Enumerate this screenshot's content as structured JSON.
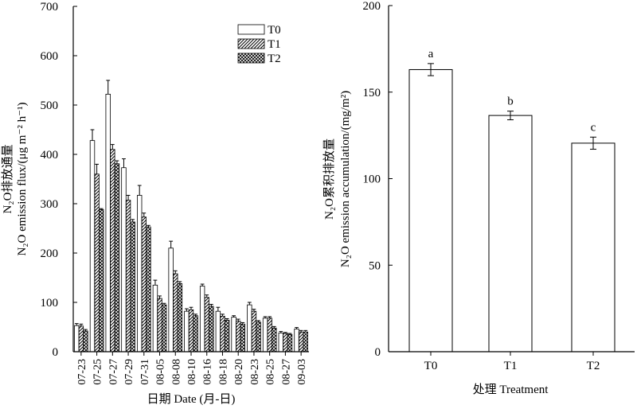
{
  "chart_data": [
    {
      "type": "bar",
      "ylabel_cn": "N₂O排放通量",
      "ylabel_en": "N₂O emission flux/(μg m⁻² h⁻¹)",
      "xlabel": "日期 Date (月-日)",
      "ylim": [
        0,
        700
      ],
      "yticks": [
        "0",
        "100",
        "200",
        "300",
        "400",
        "500",
        "600",
        "700"
      ],
      "categories": [
        "07-23",
        "07-25",
        "07-27",
        "07-29",
        "07-31",
        "08-05",
        "08-08",
        "08-10",
        "08-16",
        "08-18",
        "08-20",
        "08-23",
        "08-25",
        "08-27",
        "09-03"
      ],
      "legend_position": "top-right",
      "series": [
        {
          "name": "T0",
          "pattern": "open",
          "values": [
            53,
            428,
            522,
            373,
            317,
            135,
            210,
            82,
            133,
            82,
            70,
            95,
            68,
            38,
            46
          ],
          "errors": [
            4,
            22,
            28,
            18,
            20,
            10,
            14,
            5,
            4,
            8,
            3,
            5,
            3,
            3,
            3
          ]
        },
        {
          "name": "T1",
          "pattern": "hatched",
          "values": [
            52,
            360,
            410,
            307,
            273,
            108,
            158,
            85,
            110,
            72,
            62,
            82,
            68,
            37,
            40
          ],
          "errors": [
            4,
            20,
            10,
            10,
            8,
            5,
            6,
            5,
            5,
            4,
            4,
            4,
            3,
            2,
            3
          ]
        },
        {
          "name": "T2",
          "pattern": "cross-hatched",
          "values": [
            42,
            288,
            381,
            263,
            253,
            95,
            138,
            73,
            92,
            64,
            56,
            60,
            48,
            35,
            40
          ],
          "errors": [
            3,
            2,
            6,
            5,
            3,
            3,
            4,
            3,
            4,
            3,
            3,
            3,
            3,
            2,
            3
          ]
        }
      ]
    },
    {
      "type": "bar",
      "ylabel_cn": "N₂O累积排放量",
      "ylabel_en": "N₂O emission accumulation/(mg/m²)",
      "xlabel": "处理 Treatment",
      "ylim": [
        0,
        200
      ],
      "yticks": [
        "0",
        "50",
        "100",
        "150",
        "200"
      ],
      "categories": [
        "T0",
        "T1",
        "T2"
      ],
      "values": [
        163,
        136.5,
        120.5
      ],
      "errors": [
        3.5,
        2.5,
        3.5
      ],
      "significance": [
        "a",
        "b",
        "c"
      ]
    }
  ]
}
